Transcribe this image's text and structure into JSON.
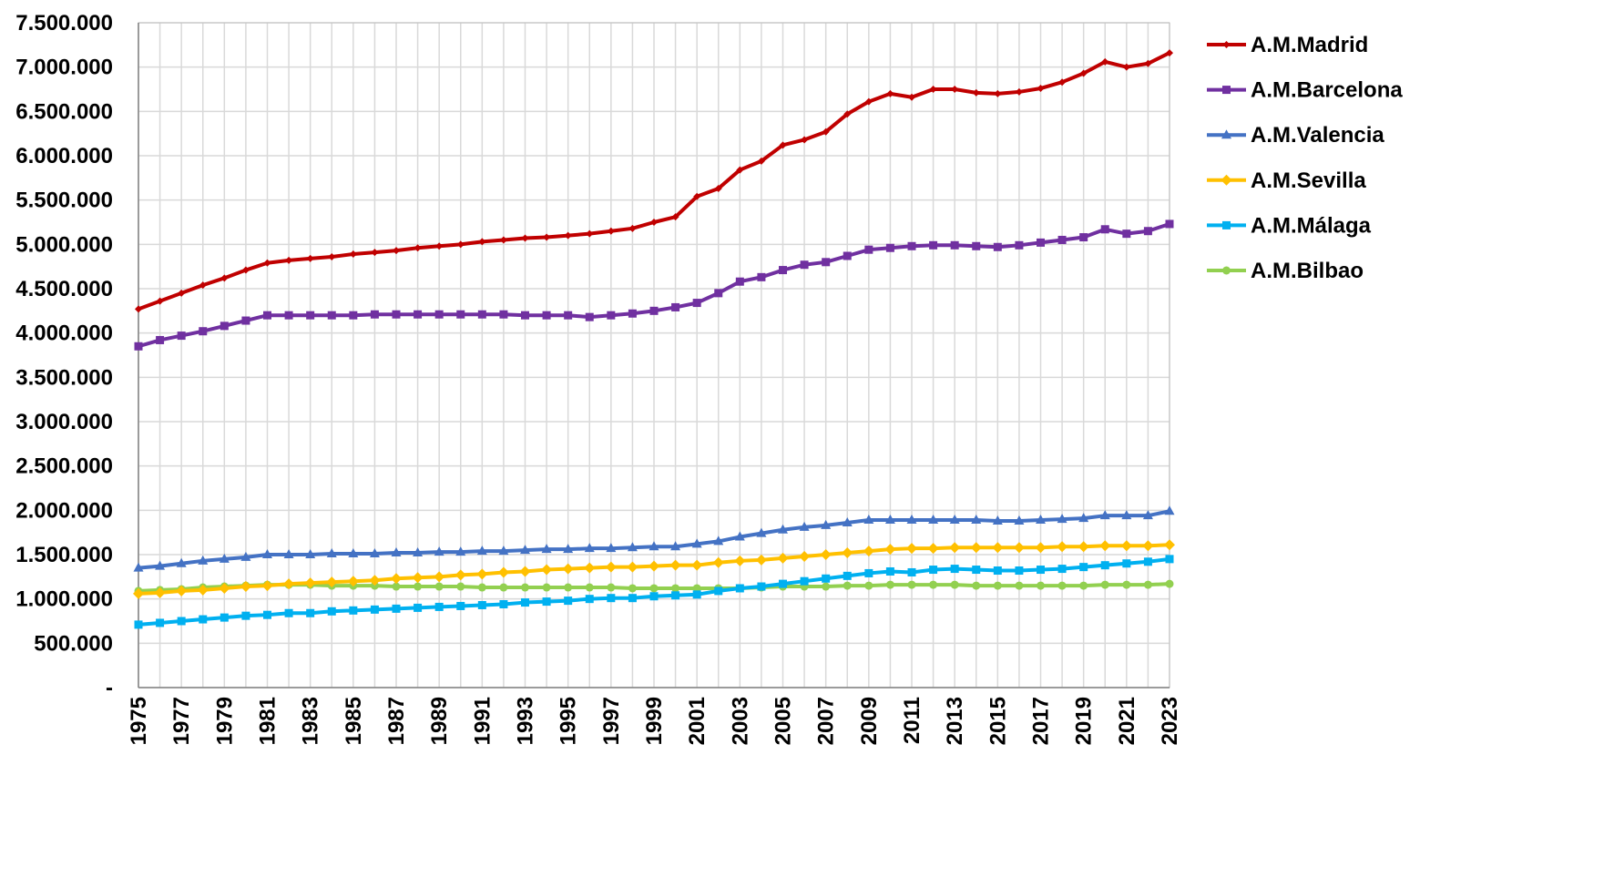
{
  "chart_data": {
    "type": "line",
    "title": "",
    "xlabel": "",
    "ylabel": "",
    "values_unit": "millions",
    "ylim": [
      0,
      7500000
    ],
    "y_ticks": [
      0,
      500000,
      1000000,
      1500000,
      2000000,
      2500000,
      3000000,
      3500000,
      4000000,
      4500000,
      5000000,
      5500000,
      6000000,
      6500000,
      7000000,
      7500000
    ],
    "y_tick_labels": [
      "-",
      "500.000",
      "1.000.000",
      "1.500.000",
      "2.000.000",
      "2.500.000",
      "3.000.000",
      "3.500.000",
      "4.000.000",
      "4.500.000",
      "5.000.000",
      "5.500.000",
      "6.000.000",
      "6.500.000",
      "7.000.000",
      "7.500.000"
    ],
    "x": [
      1975,
      1976,
      1977,
      1978,
      1979,
      1980,
      1981,
      1982,
      1983,
      1984,
      1985,
      1986,
      1987,
      1988,
      1989,
      1990,
      1991,
      1992,
      1993,
      1994,
      1995,
      1996,
      1997,
      1998,
      1999,
      2000,
      2001,
      2002,
      2003,
      2004,
      2005,
      2006,
      2007,
      2008,
      2009,
      2010,
      2011,
      2012,
      2013,
      2014,
      2015,
      2016,
      2017,
      2018,
      2019,
      2020,
      2021,
      2022,
      2023
    ],
    "x_tick_labels": [
      "1975",
      "1977",
      "1979",
      "1981",
      "1983",
      "1985",
      "1987",
      "1989",
      "1991",
      "1993",
      "1995",
      "1997",
      "1999",
      "2001",
      "2003",
      "2005",
      "2007",
      "2009",
      "2011",
      "2013",
      "2015",
      "2017",
      "2019",
      "2021",
      "2023"
    ],
    "grid": true,
    "legend_position": "right",
    "series": [
      {
        "name": "A.M.Madrid",
        "color": "#C00000",
        "marker": "diamond-small",
        "values": [
          4.27,
          4.36,
          4.45,
          4.54,
          4.62,
          4.71,
          4.79,
          4.82,
          4.84,
          4.86,
          4.89,
          4.91,
          4.93,
          4.96,
          4.98,
          5.0,
          5.03,
          5.05,
          5.07,
          5.08,
          5.1,
          5.12,
          5.15,
          5.18,
          5.25,
          5.31,
          5.54,
          5.63,
          5.84,
          5.94,
          6.12,
          6.18,
          6.27,
          6.47,
          6.61,
          6.7,
          6.66,
          6.75,
          6.75,
          6.71,
          6.7,
          6.72,
          6.76,
          6.83,
          6.93,
          7.06,
          7.0,
          7.04,
          7.16
        ]
      },
      {
        "name": "A.M.Barcelona",
        "color": "#7030A0",
        "marker": "square",
        "values": [
          3.85,
          3.92,
          3.97,
          4.02,
          4.08,
          4.14,
          4.2,
          4.2,
          4.2,
          4.2,
          4.2,
          4.21,
          4.21,
          4.21,
          4.21,
          4.21,
          4.21,
          4.21,
          4.2,
          4.2,
          4.2,
          4.18,
          4.2,
          4.22,
          4.25,
          4.29,
          4.34,
          4.45,
          4.58,
          4.63,
          4.71,
          4.77,
          4.8,
          4.87,
          4.94,
          4.96,
          4.98,
          4.99,
          4.99,
          4.98,
          4.97,
          4.99,
          5.02,
          5.05,
          5.08,
          5.17,
          5.12,
          5.15,
          5.23
        ]
      },
      {
        "name": "A.M.Valencia",
        "color": "#4472C4",
        "marker": "triangle",
        "values": [
          1.35,
          1.37,
          1.4,
          1.43,
          1.45,
          1.47,
          1.5,
          1.5,
          1.5,
          1.51,
          1.51,
          1.51,
          1.52,
          1.52,
          1.53,
          1.53,
          1.54,
          1.54,
          1.55,
          1.56,
          1.56,
          1.57,
          1.57,
          1.58,
          1.59,
          1.59,
          1.62,
          1.65,
          1.7,
          1.74,
          1.78,
          1.81,
          1.83,
          1.86,
          1.89,
          1.89,
          1.89,
          1.89,
          1.89,
          1.89,
          1.88,
          1.88,
          1.89,
          1.9,
          1.91,
          1.94,
          1.94,
          1.94,
          1.99
        ]
      },
      {
        "name": "A.M.Sevilla",
        "color": "#FFC000",
        "marker": "diamond",
        "values": [
          1.06,
          1.07,
          1.09,
          1.1,
          1.12,
          1.14,
          1.15,
          1.17,
          1.18,
          1.19,
          1.2,
          1.21,
          1.23,
          1.24,
          1.25,
          1.27,
          1.28,
          1.3,
          1.31,
          1.33,
          1.34,
          1.35,
          1.36,
          1.36,
          1.37,
          1.38,
          1.38,
          1.41,
          1.43,
          1.44,
          1.46,
          1.48,
          1.5,
          1.52,
          1.54,
          1.56,
          1.57,
          1.57,
          1.58,
          1.58,
          1.58,
          1.58,
          1.58,
          1.59,
          1.59,
          1.6,
          1.6,
          1.6,
          1.61
        ]
      },
      {
        "name": "A.M.Málaga",
        "color": "#00B0F0",
        "marker": "square",
        "values": [
          0.71,
          0.73,
          0.75,
          0.77,
          0.79,
          0.81,
          0.82,
          0.84,
          0.84,
          0.86,
          0.87,
          0.88,
          0.89,
          0.9,
          0.91,
          0.92,
          0.93,
          0.94,
          0.96,
          0.97,
          0.98,
          1.0,
          1.01,
          1.01,
          1.03,
          1.04,
          1.05,
          1.09,
          1.12,
          1.14,
          1.17,
          1.2,
          1.23,
          1.26,
          1.29,
          1.31,
          1.3,
          1.33,
          1.34,
          1.33,
          1.32,
          1.32,
          1.33,
          1.34,
          1.36,
          1.38,
          1.4,
          1.42,
          1.45
        ]
      },
      {
        "name": "A.M.Bilbao",
        "color": "#92D050",
        "marker": "circle",
        "values": [
          1.09,
          1.1,
          1.11,
          1.13,
          1.14,
          1.15,
          1.16,
          1.16,
          1.16,
          1.15,
          1.15,
          1.15,
          1.14,
          1.14,
          1.14,
          1.14,
          1.13,
          1.13,
          1.13,
          1.13,
          1.13,
          1.13,
          1.13,
          1.12,
          1.12,
          1.12,
          1.12,
          1.12,
          1.12,
          1.13,
          1.14,
          1.14,
          1.14,
          1.15,
          1.15,
          1.16,
          1.16,
          1.16,
          1.16,
          1.15,
          1.15,
          1.15,
          1.15,
          1.15,
          1.15,
          1.16,
          1.16,
          1.16,
          1.17
        ]
      }
    ]
  }
}
